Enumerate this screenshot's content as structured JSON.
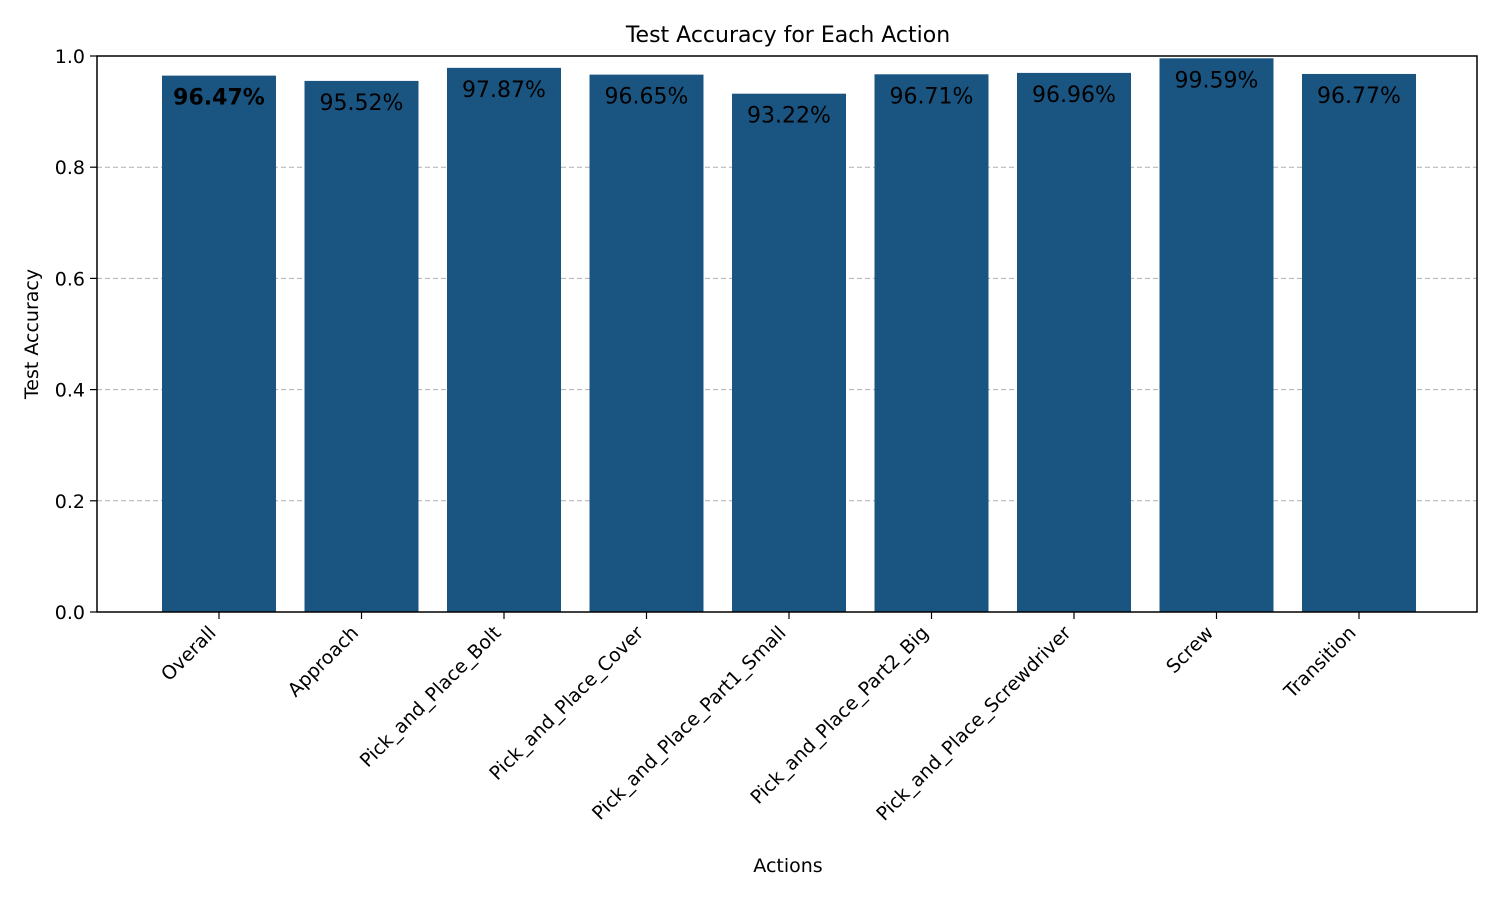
{
  "chart_data": {
    "type": "bar",
    "title": "Test Accuracy for Each Action",
    "xlabel": "Actions",
    "ylabel": "Test Accuracy",
    "ylim": [
      0,
      1.0
    ],
    "yticks": [
      "0.0",
      "0.2",
      "0.4",
      "0.6",
      "0.8",
      "1.0"
    ],
    "grid": "horizontal dashed",
    "bar_color": "#1a5480",
    "categories": [
      "Overall",
      "Approach",
      "Pick_and_Place_Bolt",
      "Pick_and_Place_Cover",
      "Pick_and_Place_Part1_Small",
      "Pick_and_Place_Part2_Big",
      "Pick_and_Place_Screwdriver",
      "Screw",
      "Transition"
    ],
    "values": [
      0.9647,
      0.9552,
      0.9787,
      0.9665,
      0.9322,
      0.9671,
      0.9696,
      0.9959,
      0.9677
    ],
    "data_labels": [
      "96.47%",
      "95.52%",
      "97.87%",
      "96.65%",
      "93.22%",
      "96.71%",
      "96.96%",
      "99.59%",
      "96.77%"
    ]
  }
}
